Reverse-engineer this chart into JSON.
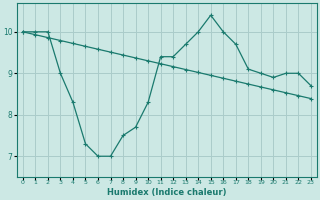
{
  "xlabel": "Humidex (Indice chaleur)",
  "ylabel": "",
  "background_color": "#cce8e4",
  "line_color": "#1a7a6e",
  "grid_color": "#aaccca",
  "xlim": [
    -0.5,
    23.5
  ],
  "ylim": [
    6.5,
    10.7
  ],
  "yticks": [
    7,
    8,
    9,
    10
  ],
  "xticks": [
    0,
    1,
    2,
    3,
    4,
    5,
    6,
    7,
    8,
    9,
    10,
    11,
    12,
    13,
    14,
    15,
    16,
    17,
    18,
    19,
    20,
    21,
    22,
    23
  ],
  "series1_x": [
    0,
    1,
    2,
    3,
    4,
    5,
    6,
    7,
    8,
    9,
    10,
    11,
    12,
    13,
    14,
    15,
    16,
    17,
    18,
    19,
    20,
    21,
    22,
    23
  ],
  "series1_y": [
    10.0,
    10.0,
    10.0,
    9.0,
    8.3,
    7.3,
    7.0,
    7.0,
    7.5,
    7.7,
    8.3,
    9.4,
    9.4,
    9.7,
    10.0,
    10.4,
    10.0,
    9.7,
    9.1,
    9.0,
    8.9,
    9.0,
    9.0,
    8.7
  ],
  "series2_x": [
    0,
    1,
    2,
    3,
    4,
    5,
    6,
    7,
    8,
    9,
    10,
    11,
    12,
    13,
    14,
    15,
    16,
    17,
    18,
    19,
    20,
    21,
    22,
    23
  ],
  "series2_y": [
    10.0,
    9.93,
    9.86,
    9.79,
    9.72,
    9.65,
    9.58,
    9.51,
    9.44,
    9.37,
    9.3,
    9.23,
    9.16,
    9.09,
    9.02,
    8.95,
    8.88,
    8.81,
    8.74,
    8.67,
    8.6,
    8.53,
    8.46,
    8.39
  ]
}
